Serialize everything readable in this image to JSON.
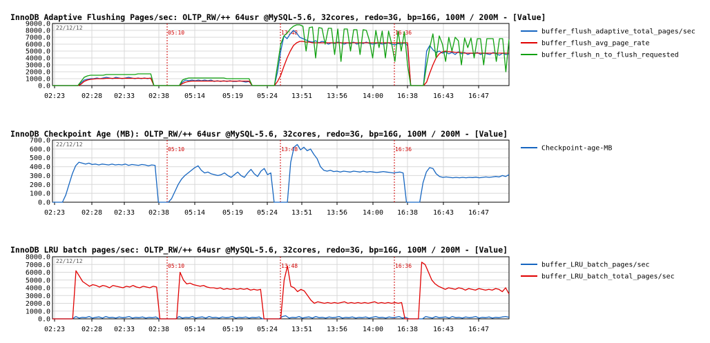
{
  "chart_data": [
    {
      "type": "line",
      "title": "InnoDB Adaptive Flushing Pages/sec: OLTP_RW/++ 64usr @MySQL-5.6, 32cores, redo=3G, bp=16G, 100M / 200M - [Value]",
      "date_label": "22/12/12",
      "ylim": [
        0,
        9000
      ],
      "yticks": [
        "0.0",
        "1000.0",
        "2000.0",
        "3000.0",
        "4000.0",
        "5000.0",
        "6000.0",
        "7000.0",
        "8000.0",
        "9000.0"
      ],
      "xticks": [
        "02:23",
        "02:28",
        "02:33",
        "02:38",
        "05:14",
        "05:19",
        "05:24",
        "13:51",
        "13:56",
        "14:00",
        "16:38",
        "16:43",
        "16:47"
      ],
      "markers": [
        {
          "label": "05:10"
        },
        {
          "label": "13:48"
        },
        {
          "label": "16:36"
        }
      ],
      "grid": true,
      "legend_position": "right",
      "series": [
        {
          "name": "buffer_flush_adaptive_total_pages/sec",
          "color": "#1565c0",
          "values": [
            0,
            0,
            0,
            0,
            0,
            0,
            0,
            0,
            0,
            400,
            800,
            900,
            1000,
            1000,
            1100,
            1000,
            1100,
            1200,
            1100,
            1000,
            1200,
            1100,
            1000,
            1100,
            1200,
            1100,
            1000,
            1100,
            1000,
            1100,
            1000,
            1100,
            0,
            0,
            0,
            0,
            0,
            0,
            0,
            0,
            0,
            500,
            800,
            700,
            800,
            700,
            800,
            700,
            800,
            700,
            800,
            600,
            700,
            600,
            700,
            600,
            700,
            600,
            600,
            700,
            600,
            500,
            600,
            0,
            0,
            0,
            0,
            0,
            0,
            0,
            0,
            2000,
            5000,
            7200,
            6800,
            7500,
            8000,
            7600,
            7000,
            6800,
            6600,
            6400,
            6300,
            6500,
            6200,
            6400,
            6300,
            6000,
            6200,
            6100,
            6300,
            6200,
            6000,
            6200,
            6100,
            6300,
            6000,
            6200,
            6100,
            6300,
            6100,
            6000,
            6100,
            6200,
            6000,
            6100,
            6200,
            6000,
            5900,
            6100,
            6000,
            6200,
            5800,
            0,
            0,
            0,
            0,
            0,
            5000,
            5800,
            5200,
            4800,
            5000,
            4700,
            4900,
            4600,
            4800,
            4500,
            4900,
            4600,
            4800,
            4500,
            4700,
            4600,
            4800,
            4500,
            4700,
            4600,
            4500,
            4800,
            4600,
            4400,
            4700,
            4500,
            4600
          ]
        },
        {
          "name": "buffer_flush_avg_page_rate",
          "color": "#e00000",
          "values": [
            0,
            0,
            0,
            0,
            0,
            0,
            0,
            0,
            0,
            200,
            600,
            800,
            900,
            950,
            1000,
            1000,
            1000,
            1050,
            1050,
            1050,
            1050,
            1050,
            1050,
            1050,
            1050,
            1050,
            1050,
            1050,
            1050,
            1050,
            1050,
            1050,
            0,
            0,
            0,
            0,
            0,
            0,
            0,
            0,
            0,
            300,
            500,
            600,
            650,
            650,
            650,
            650,
            650,
            650,
            650,
            650,
            650,
            650,
            650,
            650,
            650,
            650,
            650,
            650,
            650,
            650,
            650,
            0,
            0,
            0,
            0,
            0,
            0,
            0,
            0,
            600,
            1500,
            2800,
            4000,
            5000,
            5800,
            6200,
            6400,
            6400,
            6300,
            6300,
            6200,
            6200,
            6200,
            6200,
            6200,
            6200,
            6200,
            6200,
            6200,
            6200,
            6200,
            6200,
            6200,
            6200,
            6200,
            6200,
            6200,
            6200,
            6200,
            6200,
            6200,
            6200,
            6200,
            6200,
            6200,
            6200,
            6200,
            6200,
            6200,
            6200,
            6200,
            0,
            0,
            0,
            0,
            0,
            500,
            1800,
            3000,
            4000,
            4600,
            4900,
            5000,
            4900,
            4900,
            4800,
            4800,
            4800,
            4700,
            4700,
            4700,
            4700,
            4700,
            4700,
            4700,
            4700,
            4700,
            4700,
            4700,
            4700,
            4700,
            4700,
            4700
          ]
        },
        {
          "name": "buffer_flush_n_to_flush_requested",
          "color": "#10a010",
          "values": [
            0,
            0,
            0,
            0,
            0,
            0,
            0,
            0,
            0,
            600,
            1200,
            1400,
            1500,
            1500,
            1500,
            1500,
            1500,
            1600,
            1600,
            1600,
            1600,
            1600,
            1600,
            1600,
            1600,
            1600,
            1600,
            1700,
            1700,
            1700,
            1700,
            1700,
            0,
            0,
            0,
            0,
            0,
            0,
            0,
            0,
            0,
            800,
            1000,
            1100,
            1100,
            1100,
            1100,
            1100,
            1100,
            1100,
            1100,
            1100,
            1100,
            1100,
            1100,
            1000,
            1000,
            1000,
            1000,
            1000,
            1000,
            1000,
            1000,
            0,
            0,
            0,
            0,
            0,
            0,
            0,
            0,
            3000,
            6000,
            7200,
            7600,
            8200,
            8600,
            8800,
            8800,
            8600,
            5000,
            8400,
            8500,
            4000,
            8400,
            8300,
            6000,
            8300,
            8300,
            4500,
            8200,
            3500,
            8200,
            8200,
            5000,
            8100,
            8100,
            4500,
            8100,
            8000,
            6500,
            4000,
            8000,
            5500,
            7900,
            4000,
            7900,
            6000,
            3500,
            7900,
            5000,
            7800,
            3000,
            0,
            0,
            0,
            0,
            0,
            3000,
            5500,
            7500,
            4000,
            7200,
            6000,
            3500,
            7000,
            5000,
            7000,
            6500,
            3000,
            6900,
            5500,
            6900,
            4000,
            6800,
            6800,
            3000,
            6800,
            6800,
            6800,
            3500,
            6800,
            6800,
            2000,
            6700
          ]
        }
      ]
    },
    {
      "type": "line",
      "title": "InnoDB Checkpoint Age (MB): OLTP_RW/++ 64usr @MySQL-5.6, 32cores, redo=3G, bp=16G, 100M / 200M - [Value]",
      "date_label": "22/12/12",
      "ylim": [
        0,
        700
      ],
      "yticks": [
        "0.0",
        "100.0",
        "200.0",
        "300.0",
        "400.0",
        "500.0",
        "600.0",
        "700.0"
      ],
      "xticks": [
        "02:23",
        "02:28",
        "02:33",
        "02:38",
        "05:14",
        "05:19",
        "05:24",
        "13:51",
        "13:56",
        "14:00",
        "16:38",
        "16:43",
        "16:47"
      ],
      "markers": [
        {
          "label": "05:10"
        },
        {
          "label": "13:48"
        },
        {
          "label": "16:36"
        }
      ],
      "grid": true,
      "legend_position": "right",
      "series": [
        {
          "name": "Checkpoint-age-MB",
          "color": "#1565c0",
          "values": [
            0,
            0,
            0,
            0,
            80,
            200,
            320,
            410,
            450,
            440,
            430,
            440,
            425,
            430,
            420,
            430,
            425,
            420,
            430,
            420,
            425,
            420,
            430,
            415,
            425,
            420,
            415,
            425,
            420,
            410,
            420,
            415,
            0,
            0,
            0,
            0,
            40,
            120,
            200,
            260,
            300,
            330,
            360,
            390,
            410,
            360,
            330,
            340,
            320,
            310,
            300,
            310,
            330,
            300,
            280,
            310,
            340,
            300,
            280,
            330,
            370,
            320,
            290,
            350,
            380,
            310,
            330,
            0,
            0,
            0,
            0,
            0,
            450,
            620,
            650,
            590,
            620,
            580,
            600,
            540,
            490,
            400,
            360,
            350,
            360,
            345,
            350,
            340,
            350,
            345,
            340,
            350,
            345,
            340,
            350,
            340,
            345,
            340,
            335,
            340,
            345,
            340,
            335,
            330,
            335,
            340,
            330,
            0,
            0,
            0,
            0,
            0,
            220,
            340,
            390,
            380,
            320,
            290,
            280,
            285,
            280,
            275,
            280,
            275,
            280,
            275,
            280,
            278,
            282,
            275,
            280,
            285,
            280,
            285,
            290,
            285,
            300,
            290,
            310
          ]
        }
      ]
    },
    {
      "type": "line",
      "title": "InnoDB LRU batch pages/sec: OLTP_RW/++ 64usr @MySQL-5.6, 32cores, redo=3G, bp=16G, 100M / 200M - [Value]",
      "date_label": "22/12/12",
      "ylim": [
        0,
        8000
      ],
      "yticks": [
        "0.0",
        "1000.0",
        "2000.0",
        "3000.0",
        "4000.0",
        "5000.0",
        "6000.0",
        "7000.0",
        "8000.0"
      ],
      "xticks": [
        "02:23",
        "02:28",
        "02:33",
        "02:38",
        "05:14",
        "05:19",
        "05:24",
        "13:51",
        "13:56",
        "14:00",
        "16:38",
        "16:43",
        "16:47"
      ],
      "markers": [
        {
          "label": "05:10"
        },
        {
          "label": "13:48"
        },
        {
          "label": "16:36"
        }
      ],
      "grid": true,
      "legend_position": "right",
      "series": [
        {
          "name": "buffer_LRU_batch_pages/sec",
          "color": "#1565c0",
          "values": [
            0,
            0,
            0,
            0,
            0,
            0,
            0,
            300,
            100,
            200,
            150,
            300,
            100,
            200,
            250,
            100,
            300,
            150,
            200,
            100,
            250,
            150,
            200,
            300,
            100,
            200,
            150,
            250,
            100,
            200,
            150,
            250,
            0,
            0,
            0,
            0,
            0,
            0,
            300,
            100,
            200,
            150,
            300,
            100,
            200,
            250,
            100,
            300,
            150,
            200,
            100,
            250,
            150,
            200,
            300,
            100,
            200,
            150,
            250,
            100,
            200,
            150,
            250,
            0,
            0,
            0,
            0,
            0,
            0,
            300,
            400,
            100,
            200,
            150,
            300,
            100,
            200,
            250,
            100,
            300,
            150,
            200,
            100,
            250,
            150,
            200,
            300,
            100,
            200,
            150,
            250,
            100,
            200,
            150,
            250,
            100,
            200,
            300,
            150,
            200,
            100,
            250,
            150,
            200,
            300,
            100,
            200,
            0,
            0,
            0,
            0,
            0,
            300,
            200,
            100,
            300,
            150,
            200,
            250,
            100,
            300,
            150,
            200,
            100,
            250,
            150,
            200,
            300,
            100,
            200,
            150,
            250,
            100,
            200,
            150,
            250,
            300,
            200
          ]
        },
        {
          "name": "buffer_LRU_batch_total_pages/sec",
          "color": "#e00000",
          "values": [
            0,
            0,
            0,
            0,
            0,
            0,
            0,
            6200,
            5500,
            4800,
            4500,
            4200,
            4400,
            4300,
            4100,
            4300,
            4200,
            4000,
            4300,
            4200,
            4100,
            4000,
            4200,
            4100,
            4300,
            4100,
            4000,
            4200,
            4100,
            4000,
            4200,
            4100,
            0,
            0,
            0,
            0,
            0,
            0,
            6000,
            5000,
            4500,
            4600,
            4400,
            4300,
            4200,
            4300,
            4100,
            4000,
            4000,
            3900,
            4000,
            3800,
            3900,
            3800,
            3900,
            3800,
            3900,
            3800,
            3900,
            3700,
            3800,
            3700,
            3800,
            0,
            0,
            0,
            0,
            0,
            0,
            5000,
            6800,
            4200,
            4000,
            3500,
            3800,
            3600,
            3000,
            2400,
            2000,
            2200,
            2100,
            2000,
            2100,
            2000,
            2100,
            2000,
            2100,
            2200,
            2000,
            2100,
            2000,
            2100,
            2000,
            2100,
            2000,
            2100,
            2200,
            2000,
            2100,
            2000,
            2100,
            2000,
            2100,
            2000,
            2100,
            0,
            0,
            0,
            0,
            0,
            7300,
            7000,
            6000,
            5000,
            4500,
            4200,
            4000,
            3800,
            4000,
            3900,
            3800,
            4000,
            3900,
            3700,
            3900,
            3800,
            3700,
            3900,
            3800,
            3700,
            3800,
            3700,
            3900,
            3800,
            3500,
            4000,
            3200
          ]
        }
      ]
    }
  ]
}
